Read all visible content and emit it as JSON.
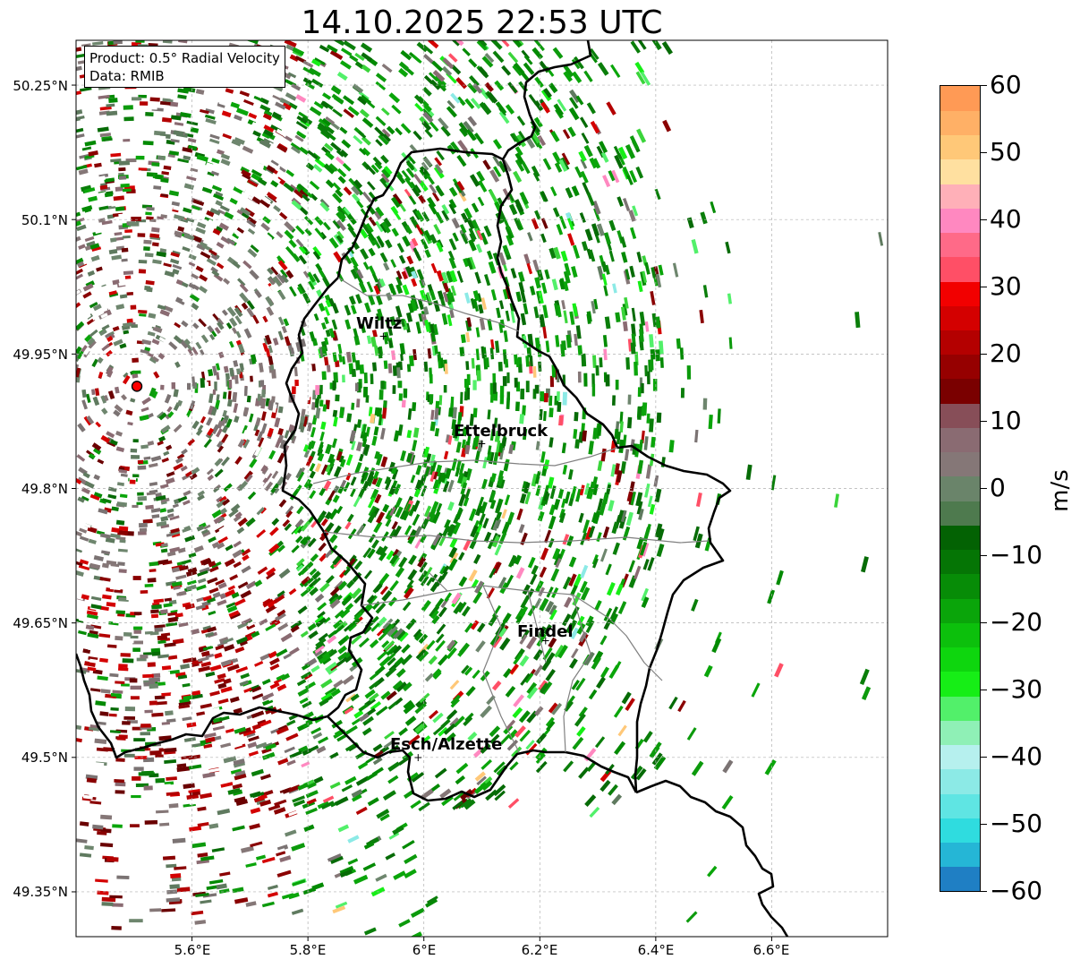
{
  "title": "14.10.2025 22:53 UTC",
  "info": {
    "product": "Product: 0.5° Radial Velocity",
    "data_source": "Data: RMIB"
  },
  "axes": {
    "lat_labels": [
      "50.25°N",
      "50.1°N",
      "49.95°N",
      "49.8°N",
      "49.65°N",
      "49.5°N",
      "49.35°N"
    ],
    "lon_labels": [
      "5.6°E",
      "5.8°E",
      "6°E",
      "6.2°E",
      "6.4°E",
      "6.6°E"
    ]
  },
  "cities": [
    {
      "name": "Wiltz",
      "lon": 5.93,
      "lat": 49.97
    },
    {
      "name": "Ettelbruck",
      "lon": 6.1,
      "lat": 49.85
    },
    {
      "name": "Findel",
      "lon": 6.21,
      "lat": 49.63
    },
    {
      "name": "Esch/Alzette",
      "lon": 5.99,
      "lat": 49.5
    }
  ],
  "radar_site": {
    "lon": 5.505,
    "lat": 49.914,
    "color": "#ff0000"
  },
  "colorbar": {
    "unit": "m/s",
    "min": -60,
    "max": 60,
    "tick_labels": [
      "60",
      "50",
      "40",
      "30",
      "20",
      "10",
      "0",
      "−10",
      "−20",
      "−30",
      "−40",
      "−50",
      "−60"
    ],
    "colors_bottom_to_top": [
      "#1f7fc4",
      "#25b6d6",
      "#2fdcdf",
      "#5fe5e3",
      "#8ceae6",
      "#b6f0ee",
      "#8ff0b6",
      "#52f06a",
      "#16ee16",
      "#0ed60e",
      "#0cc00c",
      "#0aa50a",
      "#078c07",
      "#057505",
      "#036203",
      "#4e7a4e",
      "#6a846a",
      "#857777",
      "#8a6b72",
      "#874e58",
      "#7a0000",
      "#960000",
      "#b40000",
      "#d40000",
      "#f20000",
      "#ff4f66",
      "#ff6a88",
      "#ff88c0",
      "#ffb0b8",
      "#ffe0a0",
      "#ffc878",
      "#ffb066",
      "#ff9a55"
    ]
  },
  "colors": {
    "border": "#000000",
    "canton_lines": "#808080",
    "grid": "#b0b0b0"
  }
}
